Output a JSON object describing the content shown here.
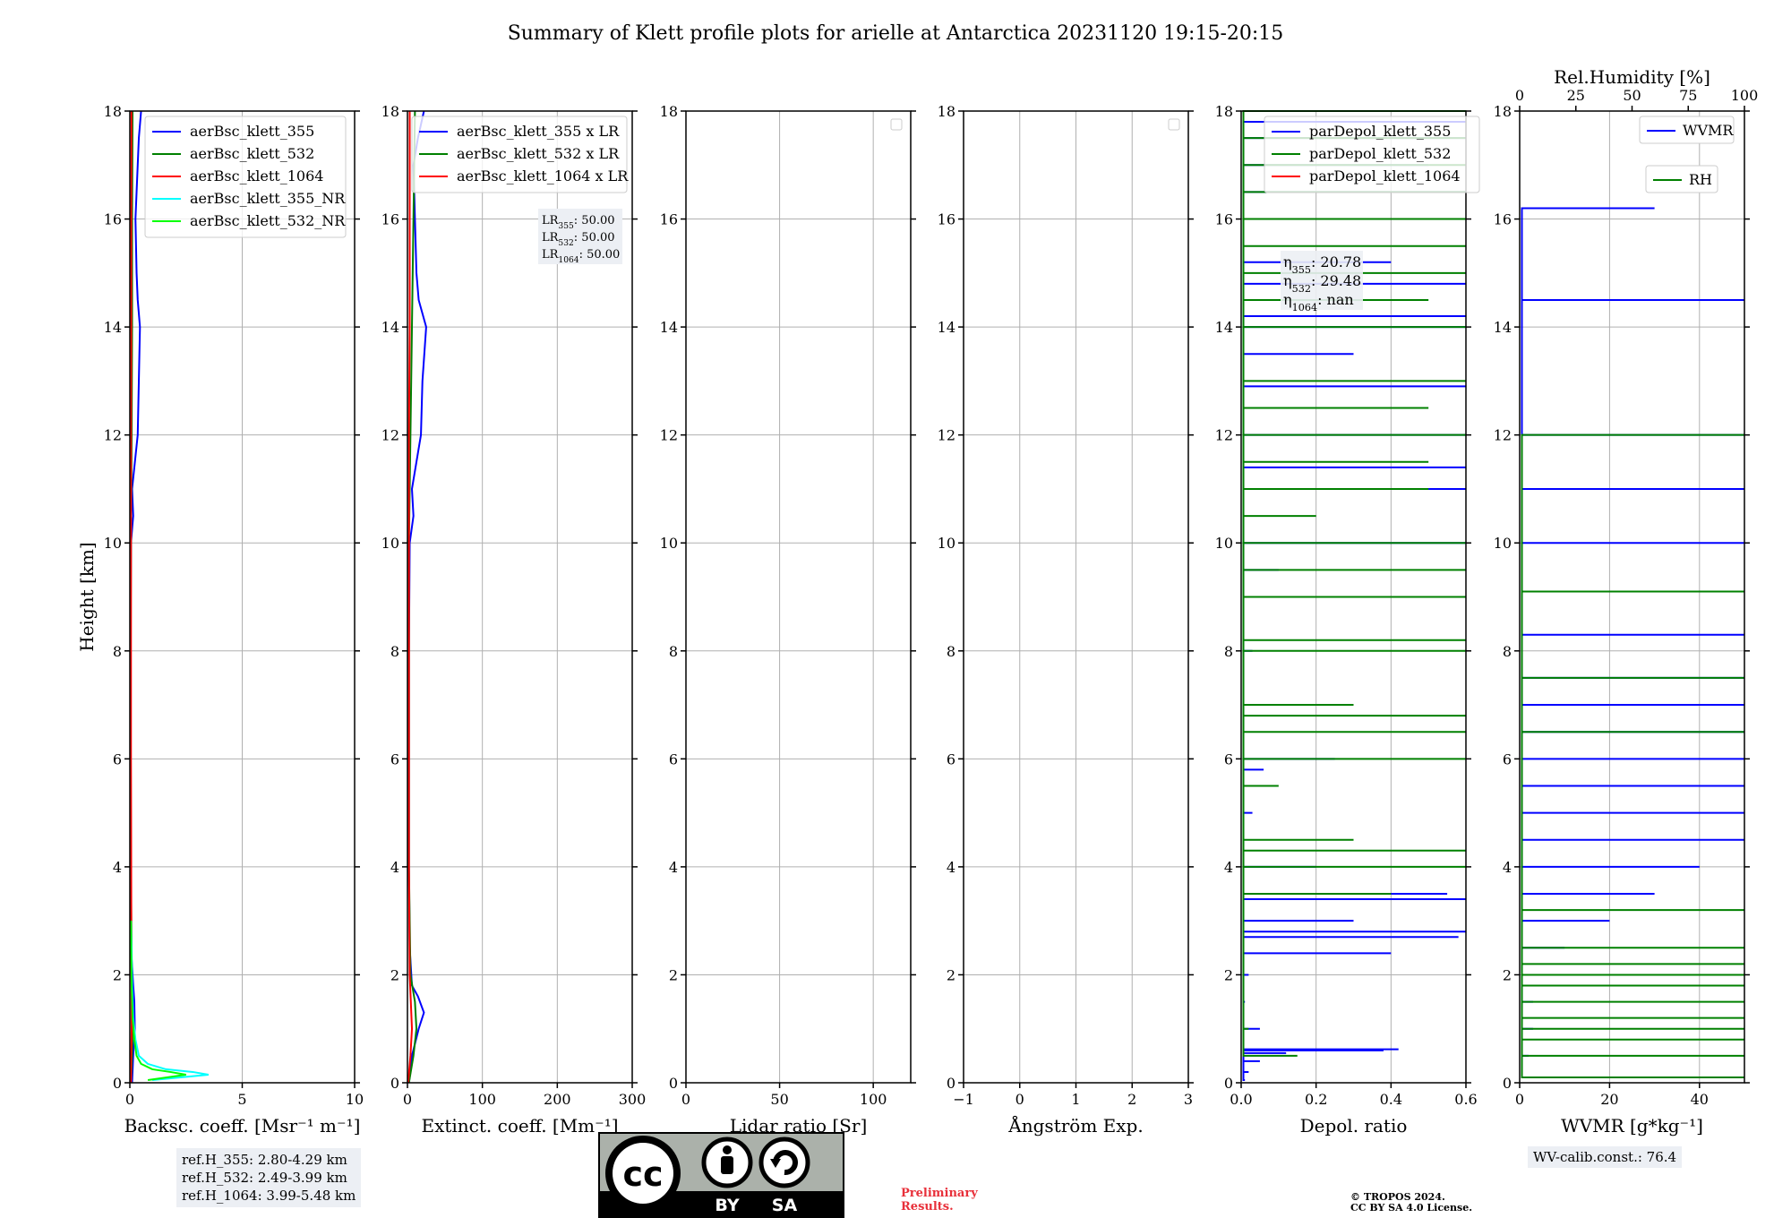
{
  "title": "Summary of Klett profile plots for arielle at Antarctica 20231120 19:15-20:15",
  "colors": {
    "c355": "#0000ff",
    "c532": "#008000",
    "c1064": "#ff0000",
    "c355nr": "#00ffff",
    "c532nr": "#00ff00",
    "grid": "#b0b0b0",
    "legendBg": "#ffffff"
  },
  "chart_data": [
    {
      "type": "line",
      "ylabel": "Height [km]",
      "xlabel": "Backsc. coeff. [Msr⁻¹ m⁻¹]",
      "xlim": [
        0,
        10
      ],
      "ylim": [
        0,
        18
      ],
      "xticks": [
        "0",
        "5",
        "10"
      ],
      "yticks": [
        "0",
        "2",
        "4",
        "6",
        "8",
        "10",
        "12",
        "14",
        "16",
        "18"
      ],
      "legend_placement": "top-center",
      "series": [
        {
          "name": "aerBsc_klett_355",
          "color": "#0000ff",
          "y": [
            0,
            0.5,
            1.0,
            1.5,
            1.8,
            2.5,
            4,
            6,
            8,
            10,
            10.5,
            11,
            12,
            13,
            14,
            14.5,
            15,
            16,
            16.5,
            17,
            17.5,
            18
          ],
          "x": [
            0.1,
            0.15,
            0.22,
            0.2,
            0.15,
            0.05,
            0.04,
            0.03,
            0.03,
            0.05,
            0.15,
            0.1,
            0.35,
            0.4,
            0.45,
            0.35,
            0.3,
            0.25,
            0.3,
            0.35,
            0.4,
            0.5
          ]
        },
        {
          "name": "aerBsc_klett_532",
          "color": "#008000",
          "y": [
            0,
            0.5,
            1,
            2,
            4,
            6,
            8,
            10,
            12,
            14,
            16,
            18
          ],
          "x": [
            0.05,
            0.1,
            0.12,
            0.08,
            0.05,
            0.04,
            0.04,
            0.05,
            0.08,
            0.1,
            0.1,
            0.12
          ]
        },
        {
          "name": "aerBsc_klett_1064",
          "color": "#ff0000",
          "y": [
            0,
            0.5,
            1,
            2,
            4,
            6,
            8,
            10,
            12,
            14,
            16,
            18
          ],
          "x": [
            0.05,
            0.06,
            0.08,
            0.07,
            0.06,
            0.05,
            0.05,
            0.05,
            0.05,
            0.06,
            0.06,
            0.07
          ]
        },
        {
          "name": "aerBsc_klett_355_NR",
          "color": "#00ffff",
          "y": [
            0.05,
            0.15,
            0.2,
            0.25,
            0.35,
            0.5,
            0.8,
            1.2,
            1.8,
            2.5,
            3.0
          ],
          "x": [
            1.0,
            3.5,
            2.8,
            1.6,
            0.8,
            0.4,
            0.25,
            0.15,
            0.1,
            0.08,
            0.05
          ]
        },
        {
          "name": "aerBsc_klett_532_NR",
          "color": "#00ff00",
          "y": [
            0.05,
            0.15,
            0.2,
            0.25,
            0.35,
            0.5,
            0.8,
            1.2,
            1.8,
            2.5,
            3.0
          ],
          "x": [
            0.8,
            2.5,
            1.8,
            1.0,
            0.5,
            0.3,
            0.2,
            0.12,
            0.08,
            0.06,
            0.05
          ]
        }
      ],
      "info_box": [
        "ref.H_355: 2.80-4.29 km",
        "ref.H_532: 2.49-3.99 km",
        "ref.H_1064: 3.99-5.48 km"
      ]
    },
    {
      "type": "line",
      "xlabel": "Extinct. coeff. [Mm⁻¹]",
      "xlim": [
        0,
        300
      ],
      "ylim": [
        0,
        18
      ],
      "xticks": [
        "0",
        "100",
        "200",
        "300"
      ],
      "yticks": [
        "0",
        "2",
        "4",
        "6",
        "8",
        "10",
        "12",
        "14",
        "16",
        "18"
      ],
      "legend_placement": "top-right",
      "series": [
        {
          "name": "aerBsc_klett_355 x LR",
          "color": "#0000ff",
          "y": [
            0,
            0.5,
            1.0,
            1.3,
            1.6,
            1.8,
            2.5,
            4,
            6,
            8,
            10,
            10.5,
            11,
            12,
            13,
            14,
            14.5,
            15,
            16,
            17,
            17.5,
            18
          ],
          "x": [
            2,
            6,
            15,
            22,
            14,
            6,
            3,
            2,
            2,
            2,
            3,
            8,
            6,
            18,
            20,
            25,
            15,
            12,
            10,
            8,
            14,
            22
          ]
        },
        {
          "name": "aerBsc_klett_532 x LR",
          "color": "#008000",
          "y": [
            0,
            0.5,
            1,
            1.5,
            2,
            4,
            6,
            8,
            10,
            12,
            14,
            16,
            18
          ],
          "x": [
            2,
            8,
            12,
            10,
            4,
            2,
            2,
            2,
            2,
            4,
            6,
            8,
            10
          ]
        },
        {
          "name": "aerBsc_klett_1064 x LR",
          "color": "#ff0000",
          "y": [
            0,
            0.5,
            1,
            2,
            4,
            6,
            8,
            10,
            12,
            14,
            16,
            18
          ],
          "x": [
            1,
            4,
            6,
            3,
            2,
            2,
            2,
            2,
            2,
            3,
            3,
            3
          ]
        }
      ],
      "annotations": [
        "LR355: 50.00",
        "LR532: 50.00",
        "LR1064: 50.00"
      ]
    },
    {
      "type": "line",
      "xlabel": "Lidar ratio [Sr]",
      "xlim": [
        0,
        120
      ],
      "ylim": [
        0,
        18
      ],
      "xticks": [
        "0",
        "50",
        "100"
      ],
      "yticks": [
        "0",
        "2",
        "4",
        "6",
        "8",
        "10",
        "12",
        "14",
        "16",
        "18"
      ],
      "series": []
    },
    {
      "type": "line",
      "xlabel": "Ångström Exp.",
      "xlim": [
        -1,
        3
      ],
      "ylim": [
        0,
        18
      ],
      "xticks": [
        "−1",
        "0",
        "1",
        "2",
        "3"
      ],
      "yticks": [
        "0",
        "2",
        "4",
        "6",
        "8",
        "10",
        "12",
        "14",
        "16",
        "18"
      ],
      "series": []
    },
    {
      "type": "line",
      "xlabel": "Depol. ratio",
      "xlim": [
        0,
        0.6
      ],
      "ylim": [
        0,
        18
      ],
      "xticks": [
        "0.0",
        "0.2",
        "0.4",
        "0.6"
      ],
      "yticks": [
        "0",
        "2",
        "4",
        "6",
        "8",
        "10",
        "12",
        "14",
        "16",
        "18"
      ],
      "legend_placement": "top-right",
      "series": [
        {
          "name": "parDepol_klett_355",
          "color": "#0000ff",
          "y": [
            0.05,
            0.2,
            0.4,
            0.55,
            0.6,
            0.62,
            1.0,
            1.5,
            2.0,
            2.4,
            2.7,
            2.8,
            3.0,
            3.4,
            3.5,
            4.0,
            5.0,
            5.8,
            6.0,
            8.0,
            9.5,
            10.0,
            11.0,
            11.4,
            12.0,
            12.9,
            13.5,
            14.0,
            14.2,
            14.8,
            15.2,
            16.0,
            16.5,
            17.0,
            17.5,
            17.8
          ],
          "x": [
            0.01,
            0.02,
            0.05,
            0.12,
            0.38,
            0.42,
            0.05,
            0.01,
            0.02,
            0.4,
            0.58,
            0.6,
            0.3,
            0.6,
            0.55,
            0.2,
            0.03,
            0.06,
            0.25,
            0.03,
            0.1,
            0.6,
            0.6,
            0.6,
            0.6,
            0.6,
            0.3,
            0.6,
            0.6,
            0.6,
            0.4,
            0.6,
            0.6,
            0.5,
            0.6,
            0.6
          ]
        },
        {
          "name": "parDepol_klett_532",
          "color": "#008000",
          "y": [
            0.5,
            1.0,
            3.5,
            4.0,
            4.3,
            4.5,
            5.5,
            6.0,
            6.5,
            6.8,
            7.0,
            8.0,
            8.2,
            9.0,
            9.5,
            10.0,
            10.5,
            11.0,
            11.5,
            12.0,
            12.5,
            13.0,
            14.0,
            14.5,
            15.0,
            15.5,
            16.0,
            16.5,
            17.0,
            17.5,
            18.0
          ],
          "x": [
            0.15,
            0.02,
            0.4,
            0.6,
            0.6,
            0.3,
            0.1,
            0.6,
            0.6,
            0.6,
            0.3,
            0.6,
            0.6,
            0.6,
            0.6,
            0.6,
            0.2,
            0.5,
            0.5,
            0.6,
            0.5,
            0.6,
            0.6,
            0.5,
            0.6,
            0.6,
            0.6,
            0.6,
            0.6,
            0.6,
            0.6
          ]
        },
        {
          "name": "parDepol_klett_1064",
          "color": "#ff0000",
          "y": [],
          "x": []
        }
      ],
      "annotations": [
        "η355: 20.78",
        "η532: 29.48",
        "η1064: nan"
      ]
    },
    {
      "type": "line",
      "xlabel": "WVMR [g*kg⁻¹]",
      "x2label": "Rel.Humidity [%]",
      "xlim": [
        0,
        50
      ],
      "x2lim": [
        0,
        100
      ],
      "ylim": [
        0,
        18
      ],
      "xticks": [
        "0",
        "20",
        "40"
      ],
      "x2ticks": [
        "0",
        "25",
        "50",
        "75",
        "100"
      ],
      "yticks": [
        "0",
        "2",
        "4",
        "6",
        "8",
        "10",
        "12",
        "14",
        "16",
        "18"
      ],
      "series": [
        {
          "name": "WVMR",
          "color": "#0000ff",
          "y": [
            0.1,
            0.5,
            1.0,
            1.5,
            2.0,
            2.5,
            3.0,
            3.5,
            4.0,
            4.5,
            5.0,
            5.5,
            6.0,
            6.5,
            7.0,
            7.5,
            8.3,
            10.0,
            11.0,
            12.0,
            14.5,
            16.2
          ],
          "x": [
            1,
            2,
            3,
            3,
            8,
            10,
            20,
            30,
            40,
            50,
            50,
            50,
            50,
            50,
            50,
            50,
            50,
            50,
            50,
            50,
            50,
            30
          ]
        },
        {
          "name": "RH",
          "color": "#008000",
          "y": [
            0.1,
            0.5,
            0.8,
            1.0,
            1.2,
            1.5,
            1.8,
            2.0,
            2.2,
            2.5,
            3.2,
            6.5,
            7.5,
            9.1,
            12.0
          ],
          "x": [
            60,
            75,
            80,
            85,
            90,
            95,
            95,
            100,
            100,
            100,
            100,
            100,
            100,
            100,
            100
          ]
        }
      ],
      "info_box": [
        "WV-calib.const.: 76.4"
      ]
    }
  ],
  "footer": {
    "cc_top": "cc",
    "cc_by": "BY",
    "cc_sa": "SA",
    "preliminary_line1": "Preliminary",
    "preliminary_line2": "Results.",
    "copyright_line1": "© TROPOS 2024.",
    "copyright_line2": "CC BY SA 4.0 License."
  }
}
